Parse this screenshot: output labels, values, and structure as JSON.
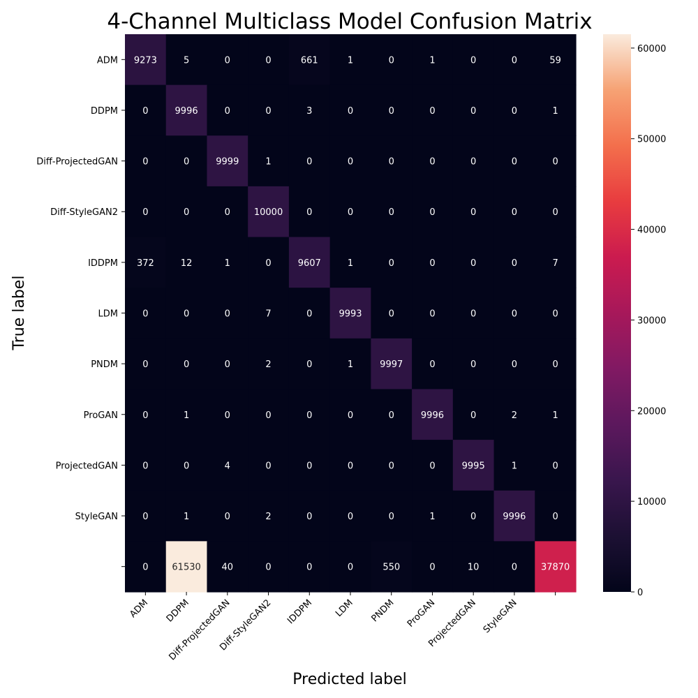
{
  "chart_data": {
    "type": "heatmap",
    "title": "4-Channel Multiclass Model Confusion Matrix",
    "xlabel": "Predicted label",
    "ylabel": "True label",
    "x_categories": [
      "ADM",
      "DDPM",
      "Diff-ProjectedGAN",
      "Diff-StyleGAN2",
      "IDDPM",
      "LDM",
      "PNDM",
      "ProGAN",
      "ProjectedGAN",
      "StyleGAN",
      ""
    ],
    "y_categories": [
      "ADM",
      "DDPM",
      "Diff-ProjectedGAN",
      "Diff-StyleGAN2",
      "IDDPM",
      "LDM",
      "PNDM",
      "ProGAN",
      "ProjectedGAN",
      "StyleGAN",
      ""
    ],
    "matrix": [
      [
        9273,
        5,
        0,
        0,
        661,
        1,
        0,
        1,
        0,
        0,
        59
      ],
      [
        0,
        9996,
        0,
        0,
        3,
        0,
        0,
        0,
        0,
        0,
        1
      ],
      [
        0,
        0,
        9999,
        1,
        0,
        0,
        0,
        0,
        0,
        0,
        0
      ],
      [
        0,
        0,
        0,
        10000,
        0,
        0,
        0,
        0,
        0,
        0,
        0
      ],
      [
        372,
        12,
        1,
        0,
        9607,
        1,
        0,
        0,
        0,
        0,
        7
      ],
      [
        0,
        0,
        0,
        7,
        0,
        9993,
        0,
        0,
        0,
        0,
        0
      ],
      [
        0,
        0,
        0,
        2,
        0,
        1,
        9997,
        0,
        0,
        0,
        0
      ],
      [
        0,
        1,
        0,
        0,
        0,
        0,
        0,
        9996,
        0,
        2,
        1
      ],
      [
        0,
        0,
        4,
        0,
        0,
        0,
        0,
        0,
        9995,
        1,
        0
      ],
      [
        0,
        1,
        0,
        2,
        0,
        0,
        0,
        1,
        0,
        9996,
        0
      ],
      [
        0,
        61530,
        40,
        0,
        0,
        0,
        550,
        0,
        10,
        0,
        37870
      ]
    ],
    "colorbar": {
      "range": [
        0,
        61530
      ],
      "ticks": [
        0,
        10000,
        20000,
        30000,
        40000,
        50000,
        60000
      ],
      "colormap": "rocket"
    }
  }
}
